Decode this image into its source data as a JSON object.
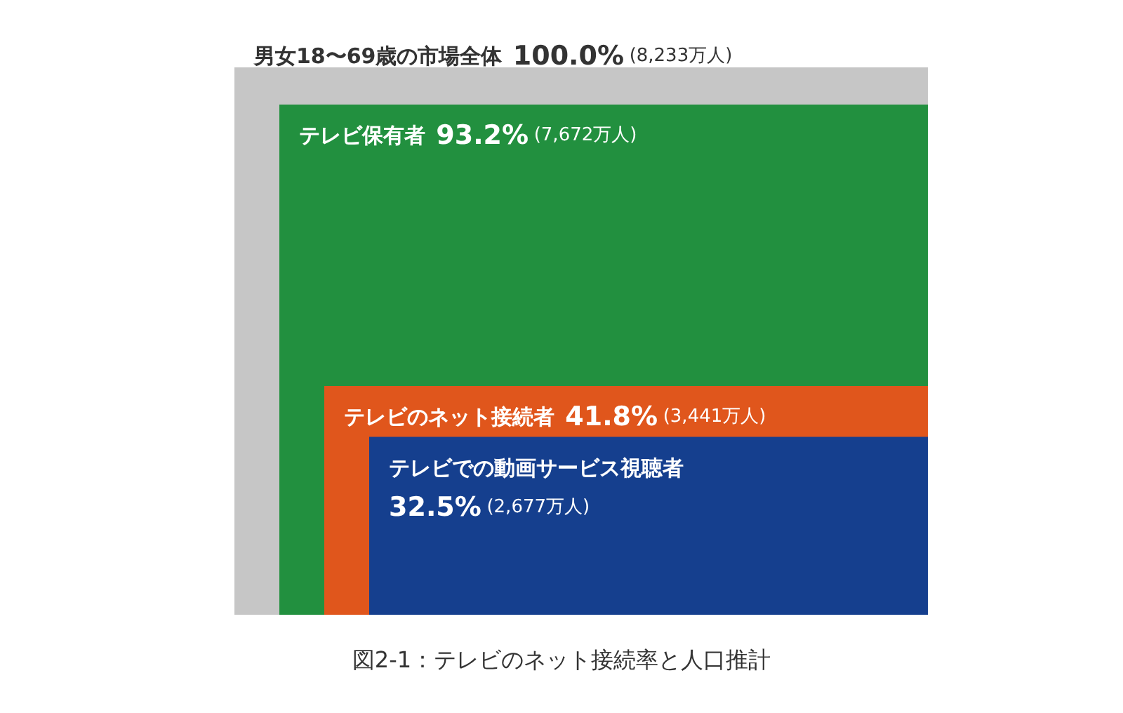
{
  "chart_data": {
    "type": "other",
    "categories": [
      "男女18〜69歳の市場全体",
      "テレビ保有者",
      "テレビのネット接続者",
      "テレビでの動画サービス視聴者"
    ],
    "series": [
      {
        "colors": [
          "#c6c6c6",
          "#22903f",
          "#e0561c",
          "#153f8e"
        ],
        "values": [
          100.0,
          93.2,
          41.8,
          32.5
        ],
        "value_labels": [
          "100.0%",
          "93.2%",
          "41.8%",
          "32.5%"
        ]
      },
      {
        "values": [
          8233,
          7672,
          3441,
          2677
        ],
        "value_labels": [
          "(8,233万人)",
          "(7,672万人)",
          "(3,441万人)",
          "(2,677万人)"
        ]
      }
    ],
    "annotations": [
      "図2-1：テレビのネット接続率と人口推計"
    ]
  }
}
